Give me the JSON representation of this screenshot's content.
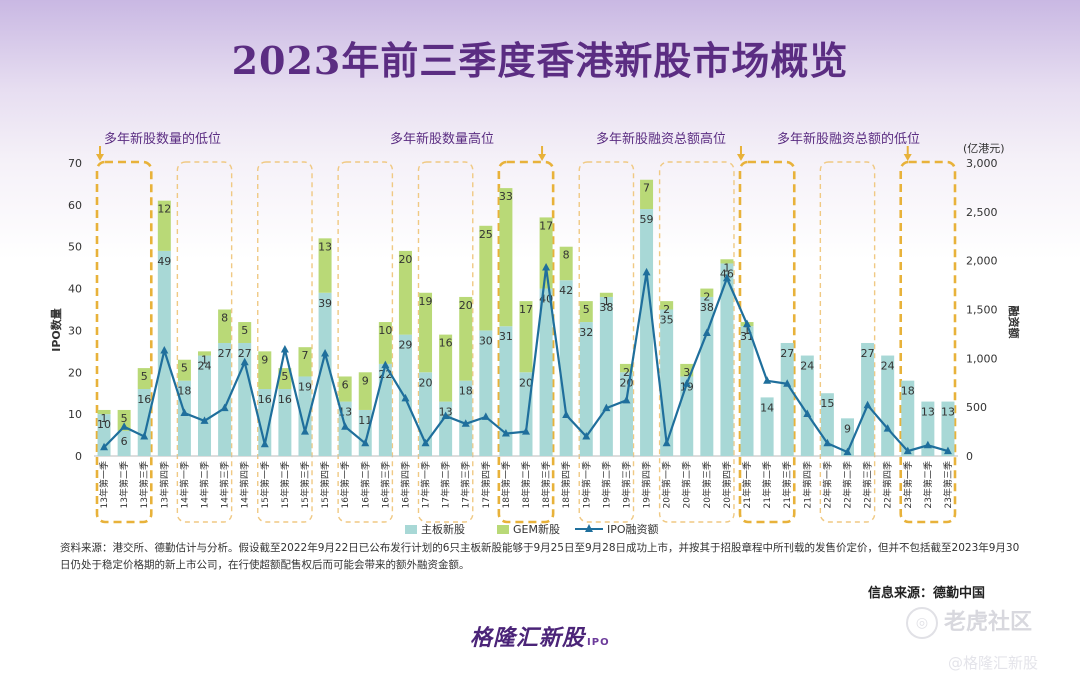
{
  "title": "2023年前三季度香港新股市场概览",
  "source_note": "资料来源：港交所、德勤估计与分析。假设截至2022年9月22日已公布发行计划的6只主板新股能够于9月25日至9月28日成功上市，并按其于招股章程中所刊载的发售价定价，但并不包括截至2023年9月30日仍处于稳定价格期的新上市公司，在行使超额配售权后而可能会带来的额外融资金额。",
  "info_source": "信息来源：德勤中国",
  "brand": "格隆汇新股",
  "brand_suffix": "IPO",
  "watermark_1": "老虎社区",
  "watermark_2": "@格隆汇新股",
  "watermark_center": "格隆汇新股",
  "colors": {
    "main": "#a8d8d6",
    "gem": "#b9d977",
    "line": "#1f6f9c",
    "highlight": "#e8b23a",
    "dash_box": "#f0c983",
    "title": "#5b2d82"
  },
  "chart_data": {
    "type": "bar",
    "stacked": true,
    "categories": [
      "13年第一季",
      "13年第二季",
      "13年第三季",
      "13年第四季",
      "14年第一季",
      "14年第二季",
      "14年第三季",
      "14年第四季",
      "15年第一季",
      "15年第二季",
      "15年第三季",
      "15年第四季",
      "16年第一季",
      "16年第二季",
      "16年第三季",
      "16年第四季",
      "17年第一季",
      "17年第二季",
      "17年第三季",
      "17年第四季",
      "18年第一季",
      "18年第二季",
      "18年第三季",
      "18年第四季",
      "19年第一季",
      "19年第二季",
      "19年第三季",
      "19年第四季",
      "20年第一季",
      "20年第二季",
      "20年第三季",
      "20年第四季",
      "21年第一季",
      "21年第二季",
      "21年第三季",
      "21年第四季",
      "22年第一季",
      "22年第二季",
      "22年第三季",
      "22年第四季",
      "23年第一季",
      "23年第二季",
      "23年第三季"
    ],
    "series": [
      {
        "name": "主板新股",
        "axis": "left",
        "values": [
          10,
          6,
          16,
          49,
          18,
          24,
          27,
          27,
          16,
          16,
          19,
          39,
          13,
          11,
          22,
          29,
          20,
          13,
          18,
          30,
          31,
          20,
          40,
          42,
          32,
          38,
          20,
          59,
          35,
          19,
          38,
          46,
          31,
          14,
          27,
          24,
          15,
          9,
          27,
          24,
          18,
          13,
          13
        ]
      },
      {
        "name": "GEM新股",
        "axis": "left",
        "values": [
          1,
          5,
          5,
          12,
          5,
          1,
          8,
          5,
          9,
          5,
          7,
          13,
          6,
          9,
          10,
          20,
          19,
          16,
          20,
          25,
          33,
          17,
          17,
          8,
          5,
          1,
          2,
          7,
          2,
          3,
          2,
          1,
          1,
          0,
          0,
          0,
          0,
          0,
          0,
          0,
          0,
          0,
          0
        ]
      },
      {
        "name": "IPO融资额",
        "axis": "right",
        "type": "line",
        "values": [
          90,
          300,
          200,
          1080,
          440,
          360,
          490,
          960,
          120,
          1090,
          250,
          1050,
          300,
          130,
          930,
          590,
          130,
          410,
          330,
          400,
          230,
          250,
          1930,
          420,
          200,
          490,
          570,
          1880,
          130,
          740,
          1260,
          1820,
          1350,
          770,
          740,
          430,
          130,
          40,
          520,
          280,
          50,
          110,
          50
        ]
      }
    ],
    "bar_labels_main": [
      10,
      6,
      16,
      49,
      18,
      24,
      27,
      27,
      16,
      16,
      19,
      39,
      13,
      11,
      22,
      29,
      20,
      13,
      18,
      30,
      31,
      20,
      40,
      42,
      32,
      38,
      20,
      59,
      35,
      19,
      38,
      46,
      31,
      14,
      27,
      24,
      15,
      9,
      27,
      24,
      18,
      13,
      13
    ],
    "bar_labels_gem": [
      1,
      5,
      5,
      12,
      5,
      1,
      8,
      5,
      9,
      5,
      7,
      13,
      6,
      9,
      10,
      20,
      19,
      16,
      20,
      25,
      33,
      17,
      17,
      8,
      5,
      1,
      2,
      7,
      2,
      3,
      2,
      1,
      1,
      null,
      null,
      null,
      null,
      null,
      null,
      null,
      null,
      null,
      null
    ],
    "ylabel_left": "IPO数量",
    "ylabel_right": "融资额",
    "right_unit": "(亿港元)",
    "ylim_left": [
      0,
      70
    ],
    "yticks_left": [
      0,
      10,
      20,
      30,
      40,
      50,
      60,
      70
    ],
    "ylim_right": [
      0,
      3000
    ],
    "yticks_right": [
      "0",
      "500",
      "1,000",
      "1,500",
      "2,000",
      "2,500",
      "3,000"
    ],
    "yticks_right_values": [
      0,
      500,
      1000,
      1500,
      2000,
      2500,
      3000
    ],
    "legend": [
      "主板新股",
      "GEM新股",
      "IPO融资额"
    ],
    "legend_position": "bottom",
    "annotations": [
      {
        "text": "多年新股数量的低位",
        "range": [
          0,
          2
        ]
      },
      {
        "text": "多年新股数量高位",
        "range": [
          20,
          22
        ]
      },
      {
        "text": "多年新股融资总额高位",
        "range": [
          32,
          34
        ]
      },
      {
        "text": "多年新股融资总额的低位",
        "range": [
          40,
          42
        ]
      }
    ],
    "highlight_groups": [
      [
        0,
        2
      ],
      [
        20,
        22
      ],
      [
        32,
        34
      ],
      [
        40,
        42
      ]
    ],
    "plain_groups": [
      [
        4,
        6
      ],
      [
        8,
        10
      ],
      [
        12,
        14
      ],
      [
        16,
        18
      ],
      [
        24,
        26
      ],
      [
        28,
        31
      ],
      [
        36,
        38
      ]
    ]
  }
}
